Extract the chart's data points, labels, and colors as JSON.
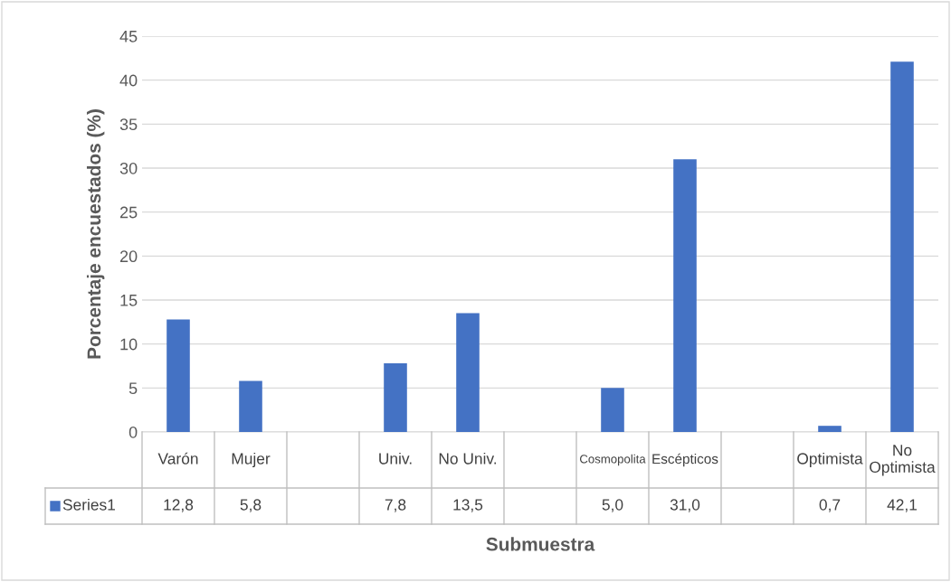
{
  "chart_data": {
    "type": "bar",
    "xlabel": "Submuestra",
    "ylabel": "Porcentaje encuestados (%)",
    "categories": [
      "Varón",
      "Mujer",
      null,
      "Univ.",
      "No Univ.",
      null,
      "Cosmopolita",
      "Escépticos",
      null,
      "Optimista",
      "No Optimista"
    ],
    "series": [
      {
        "name": "Series1",
        "color": "#4472c4",
        "values": [
          12.8,
          5.8,
          null,
          7.8,
          13.5,
          null,
          5.0,
          31.0,
          null,
          0.7,
          42.1
        ],
        "value_labels": [
          "12,8",
          "5,8",
          null,
          "7,8",
          "13,5",
          null,
          "5,0",
          "31,0",
          null,
          "0,7",
          "42,1"
        ]
      }
    ],
    "ylim": [
      0,
      45
    ],
    "yticks": [
      0,
      5,
      10,
      15,
      20,
      25,
      30,
      35,
      40,
      45
    ],
    "grid": "y",
    "legend": "bottom"
  }
}
